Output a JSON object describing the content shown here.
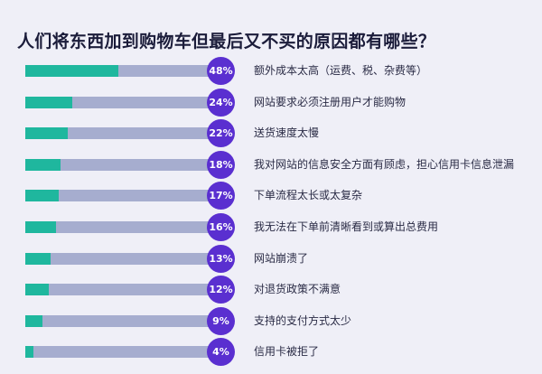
{
  "title": "人们将东西加到购物车但最后又不买的原因都有哪些？",
  "colors": {
    "background": "#efeff7",
    "bar_fill": "#1fb79e",
    "bar_track": "#a6adcf",
    "badge": "#5a2fd0",
    "title": "#1b1c3a"
  },
  "chart_data": {
    "type": "bar",
    "orientation": "horizontal",
    "title": "人们将东西加到购物车但最后又不买的原因都有哪些？",
    "xlim": [
      0,
      100
    ],
    "grid": false,
    "legend": "none",
    "categories": [
      "额外成本太高（运费、税、杂费等）",
      "网站要求必须注册用户才能购物",
      "送货速度太慢",
      "我对网站的信息安全方面有顾虑，担心信用卡信息泄漏",
      "下单流程太长或太复杂",
      "我无法在下单前清晰看到或算出总费用",
      "网站崩溃了",
      "对退货政策不满意",
      "支持的支付方式太少",
      "信用卡被拒了"
    ],
    "values": [
      48,
      24,
      22,
      18,
      17,
      16,
      13,
      12,
      9,
      4
    ],
    "value_labels": [
      "48%",
      "24%",
      "22%",
      "18%",
      "17%",
      "16%",
      "13%",
      "12%",
      "9%",
      "4%"
    ]
  }
}
